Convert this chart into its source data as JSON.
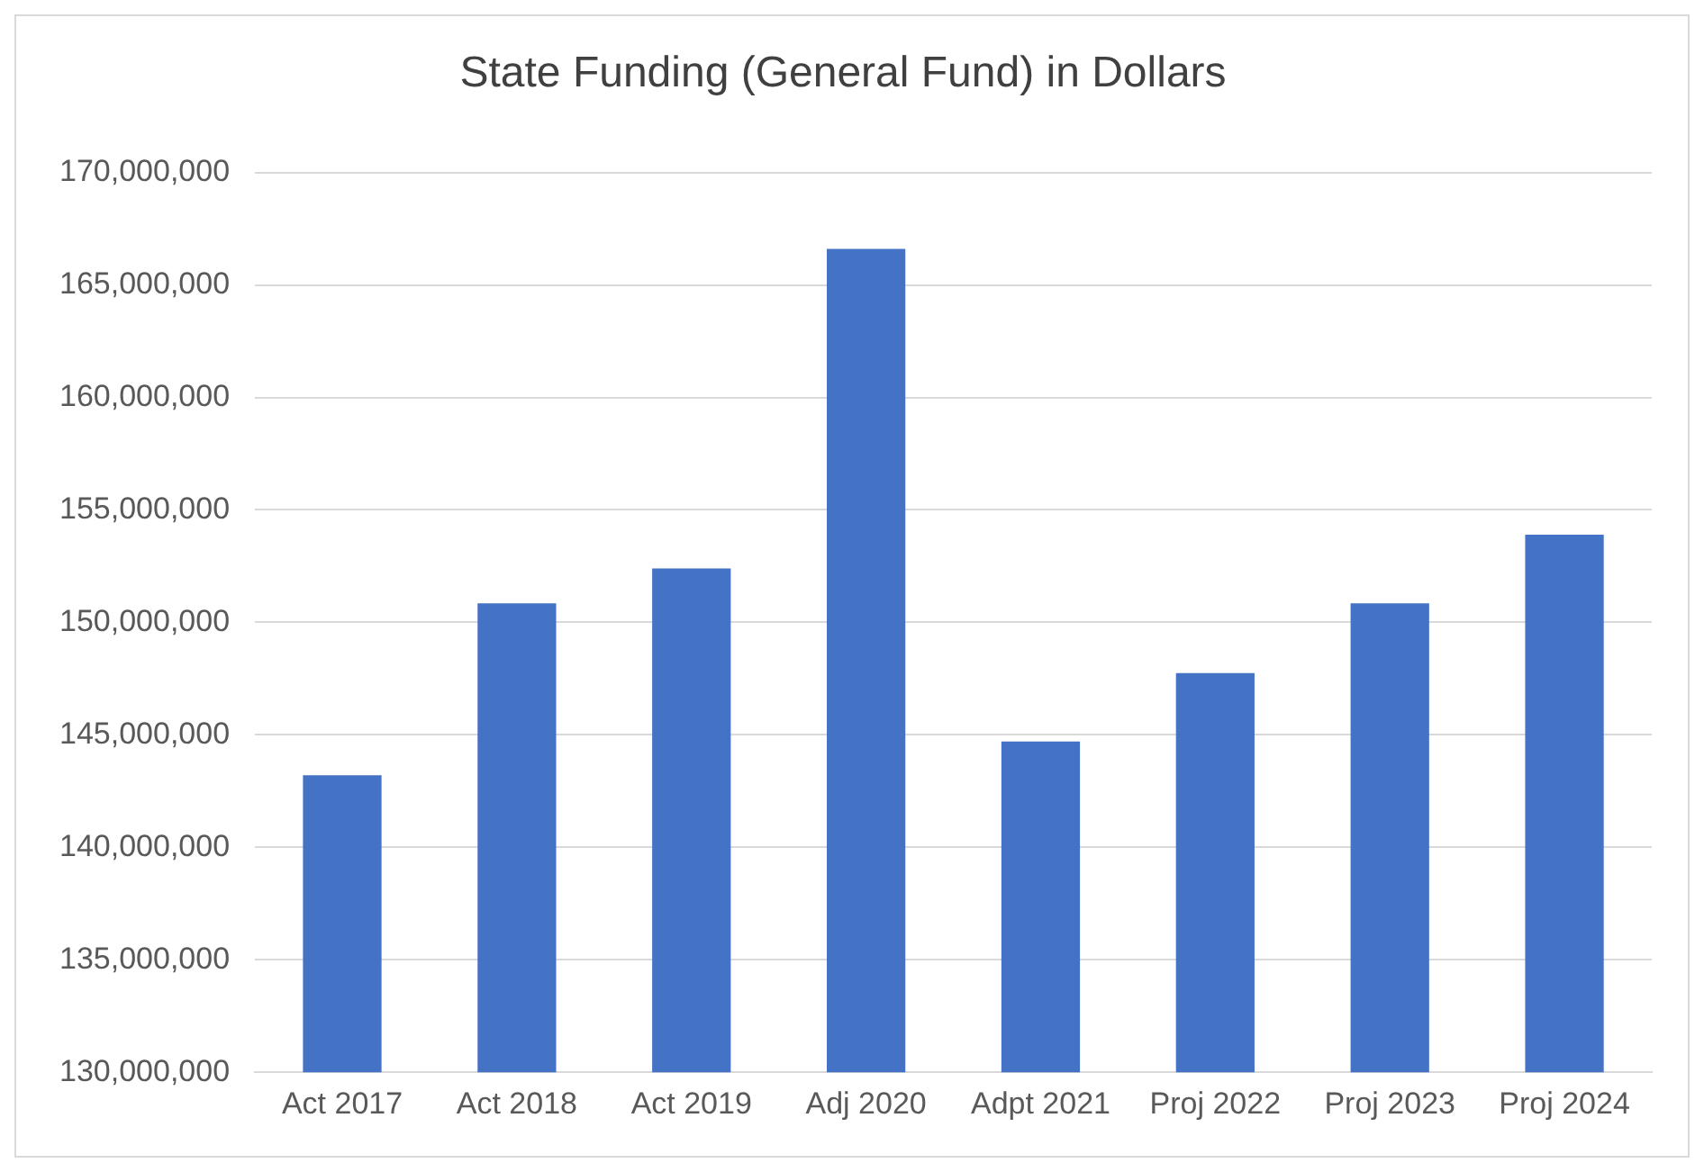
{
  "chart_data": {
    "type": "bar",
    "title": "State Funding (General Fund) in Dollars",
    "categories": [
      "Act 2017",
      "Act 2018",
      "Act 2019",
      "Adj 2020",
      "Adpt 2021",
      "Proj 2022",
      "Proj 2023",
      "Proj 2024"
    ],
    "values": [
      143200000,
      150850000,
      152400000,
      166600000,
      144700000,
      147750000,
      150850000,
      153900000
    ],
    "color": "#4472c4",
    "ylim": [
      130000000,
      170000000
    ],
    "yticks": [
      {
        "value": 130000000,
        "label": "130,000,000"
      },
      {
        "value": 135000000,
        "label": "135,000,000"
      },
      {
        "value": 140000000,
        "label": "140,000,000"
      },
      {
        "value": 145000000,
        "label": "145,000,000"
      },
      {
        "value": 150000000,
        "label": "150,000,000"
      },
      {
        "value": 155000000,
        "label": "155,000,000"
      },
      {
        "value": 160000000,
        "label": "160,000,000"
      },
      {
        "value": 165000000,
        "label": "165,000,000"
      },
      {
        "value": 170000000,
        "label": "170,000,000"
      }
    ],
    "grid": "y"
  }
}
